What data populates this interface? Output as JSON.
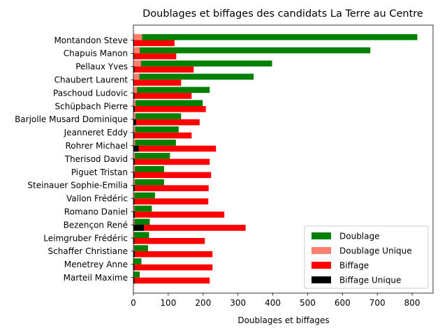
{
  "chart_data": {
    "type": "bar",
    "orientation": "horizontal",
    "title": "Doublages et biffages des candidats La Terre au Centre",
    "xlabel": "Doublages et biffages",
    "ylabel": "",
    "xlim": [
      0,
      860
    ],
    "xticks": [
      0,
      100,
      200,
      300,
      400,
      500,
      600,
      700,
      800
    ],
    "legend_position": "bottom-right",
    "grid": false,
    "categories": [
      "Montandon Steve",
      "Chapuis Manon",
      "Pellaux Yves",
      "Chaubert Laurent",
      "Paschoud Ludovic",
      "Schüpbach Pierre",
      "Barjolle Musard Dominique",
      "Jeanneret Eddy",
      "Rohrer Michael",
      "Therisod David",
      "Piguet Tristan",
      "Steinauer Sophie-Emilia",
      "Vallon Frédéric",
      "Romano Daniel",
      "Bezençon René",
      "Leimgruber Frédéric",
      "Schaffer Christiane",
      "Menetrey Anne",
      "Marteil Maxime"
    ],
    "series": [
      {
        "name": "Doublage",
        "color": "#008000",
        "values": [
          815,
          680,
          398,
          345,
          219,
          199,
          137,
          130,
          122,
          105,
          88,
          88,
          62,
          53,
          47,
          45,
          42,
          23,
          18
        ]
      },
      {
        "name": "Doublage Unique",
        "color": "#fa8072",
        "values": [
          25,
          18,
          22,
          17,
          10,
          6,
          6,
          5,
          5,
          4,
          4,
          4,
          3,
          3,
          3,
          2,
          2,
          1,
          1
        ]
      },
      {
        "name": "Biffage",
        "color": "#ff0000",
        "values": [
          118,
          123,
          173,
          137,
          167,
          208,
          190,
          167,
          237,
          219,
          223,
          216,
          215,
          261,
          322,
          205,
          227,
          227,
          219
        ]
      },
      {
        "name": "Biffage Unique",
        "color": "#000000",
        "values": [
          2,
          2,
          3,
          2,
          3,
          4,
          8,
          3,
          15,
          4,
          3,
          4,
          3,
          4,
          30,
          3,
          4,
          3,
          3
        ]
      }
    ]
  }
}
